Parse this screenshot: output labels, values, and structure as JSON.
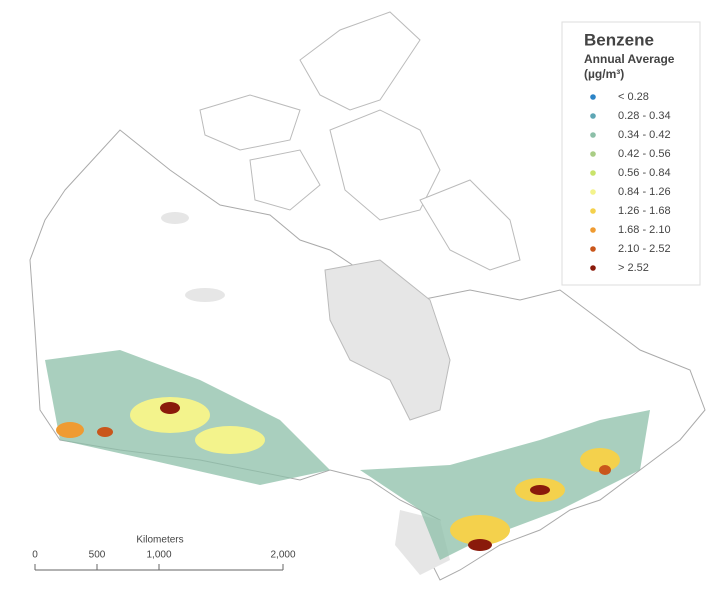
{
  "legend": {
    "title": "Benzene",
    "subtitle": "Annual Average",
    "units": "(µg/m³)",
    "items": [
      {
        "label": "< 0.28",
        "color": "#2b83c6"
      },
      {
        "label": "0.28 - 0.34",
        "color": "#5ea6b4"
      },
      {
        "label": "0.34 - 0.42",
        "color": "#8cbfa8"
      },
      {
        "label": "0.42 - 0.56",
        "color": "#a9cd85"
      },
      {
        "label": "0.56 - 0.84",
        "color": "#c9e36b"
      },
      {
        "label": "0.84 - 1.26",
        "color": "#f3f38c"
      },
      {
        "label": "1.26 - 1.68",
        "color": "#f4d14c"
      },
      {
        "label": "1.68 - 2.10",
        "color": "#ef9b32"
      },
      {
        "label": "2.10 - 2.52",
        "color": "#c9561b"
      },
      {
        "label": "> 2.52",
        "color": "#8a1a0b"
      }
    ]
  },
  "scale_bar": {
    "title": "Kilometers",
    "ticks": [
      {
        "value": 0,
        "label": "0"
      },
      {
        "value": 500,
        "label": "500"
      },
      {
        "value": 1000,
        "label": "1,000"
      },
      {
        "value": 2000,
        "label": "2,000"
      }
    ]
  }
}
